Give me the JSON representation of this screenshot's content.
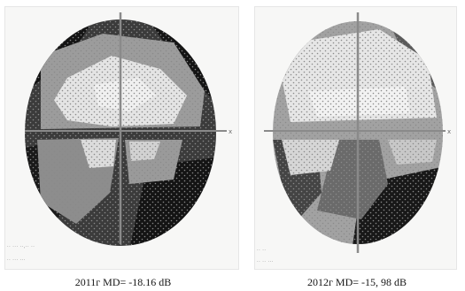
{
  "panels": [
    {
      "caption": "2011г MD= -18.16 dB",
      "corner_text": [
        "·· ··· ··,·· ··",
        "·· ··· ···"
      ],
      "axis_label": "x",
      "regions": {
        "light": "#e4e4e4",
        "mid": "#9c9c9c",
        "dark": "#3b3b3b",
        "black": "#141414"
      }
    },
    {
      "caption": "2012г MD= -15, 98 dB",
      "corner_text": [
        "·· ··",
        "·· ·· ···"
      ],
      "axis_label": "x",
      "regions": {
        "light": "#e6e6e6",
        "mid": "#a2a2a2",
        "dark": "#444444",
        "black": "#181818"
      }
    }
  ]
}
